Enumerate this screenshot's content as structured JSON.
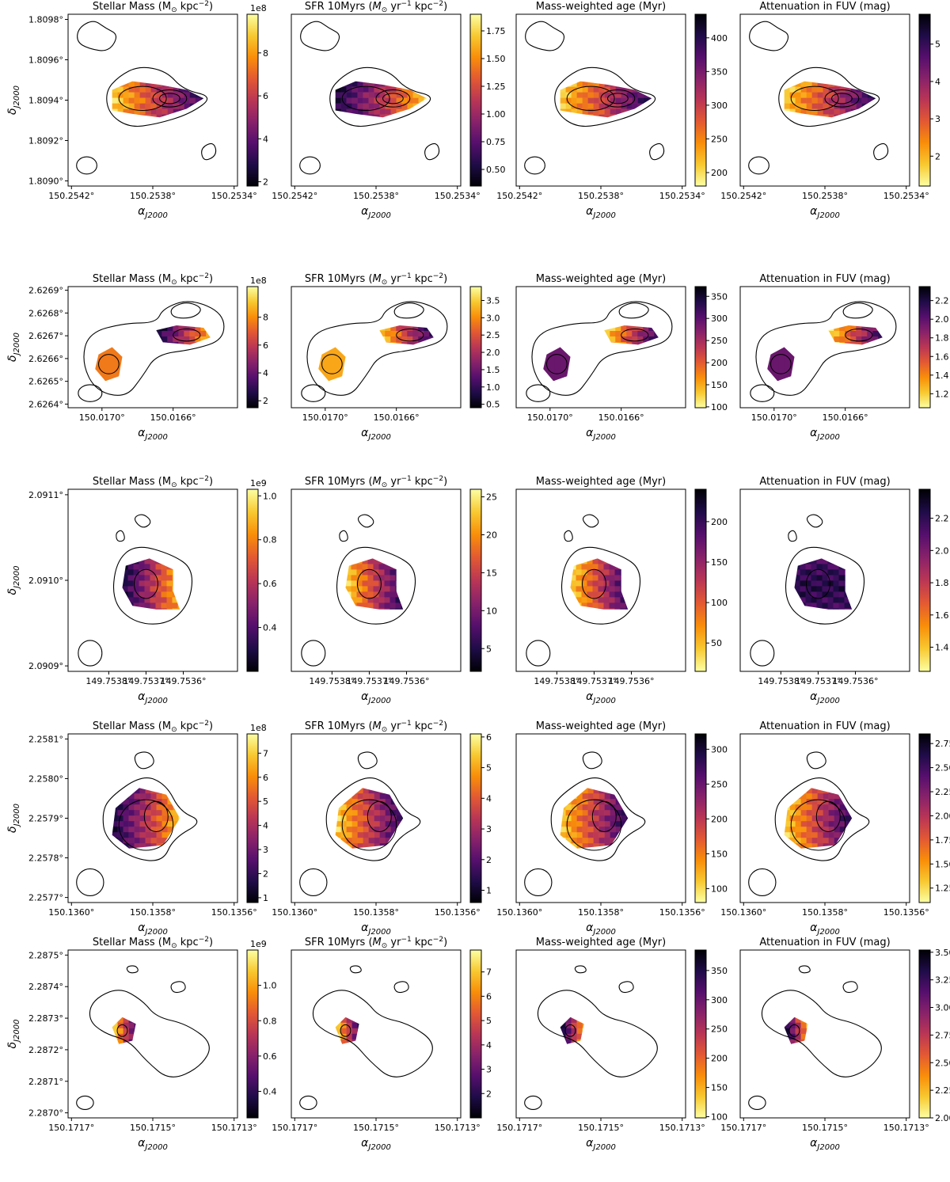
{
  "figure": {
    "axis_labels": {
      "ra": "α",
      "ra_sub": "J2000",
      "dec": "δ",
      "dec_sub": "J2000"
    },
    "panel_titles": [
      {
        "plain": "Stellar Mass (M",
        "sub": "⊙",
        "tail": " kpc",
        "sup": "−2",
        "end": ")"
      },
      {
        "plain": "SFR 10Myrs (",
        "m": "M",
        "sub": "⊙",
        "tail": " yr",
        "sup": "−1",
        "mid": " kpc",
        "sup2": "−2",
        "end": ")"
      },
      {
        "plain": "Mass-weighted age (Myr)"
      },
      {
        "plain": "Attenuation in FUV (mag)"
      }
    ],
    "colormaps": {
      "inferno": [
        "#000004",
        "#1f0c48",
        "#550f6d",
        "#88226a",
        "#ba3655",
        "#e35933",
        "#f98e09",
        "#f8c931",
        "#fcffa4"
      ],
      "inferno_r": [
        "#fcffa4",
        "#f8c931",
        "#f98e09",
        "#e35933",
        "#ba3655",
        "#88226a",
        "#550f6d",
        "#1f0c48",
        "#000004"
      ]
    }
  },
  "chart_data": [
    {
      "type": "heatmap",
      "galaxy": 1,
      "ra_ticks": [
        "150.2542°",
        "150.2538°",
        "150.2534°"
      ],
      "dec_ticks": [
        "1.8098°",
        "1.8096°",
        "1.8094°",
        "1.8092°",
        "1.8090°"
      ],
      "panels": [
        {
          "quantity": "Stellar Mass",
          "cmap": "inferno",
          "range": [
            1.8,
            9.8
          ],
          "ticks": [
            "2",
            "4",
            "6",
            "8"
          ],
          "exponent": "1e8",
          "hot": "left"
        },
        {
          "quantity": "SFR 10Myrs",
          "cmap": "inferno",
          "range": [
            0.35,
            1.9
          ],
          "ticks": [
            "0.50",
            "0.75",
            "1.00",
            "1.25",
            "1.50",
            "1.75"
          ],
          "hot": "right"
        },
        {
          "quantity": "Mass-weighted age",
          "cmap": "inferno_r",
          "range": [
            180,
            435
          ],
          "ticks": [
            "200",
            "250",
            "300",
            "350",
            "400"
          ],
          "hot": "right"
        },
        {
          "quantity": "Attenuation in FUV",
          "cmap": "inferno_r",
          "range": [
            1.2,
            5.8
          ],
          "ticks": [
            "2",
            "3",
            "4",
            "5"
          ],
          "hot": "right"
        }
      ]
    },
    {
      "type": "heatmap",
      "galaxy": 2,
      "ra_ticks": [
        "150.0170°",
        "150.0166°"
      ],
      "dec_ticks": [
        "2.6269°",
        "2.6268°",
        "2.6267°",
        "2.6266°",
        "2.6265°",
        "2.6264°"
      ],
      "panels": [
        {
          "quantity": "Stellar Mass",
          "cmap": "inferno",
          "range": [
            1.5,
            10.2
          ],
          "ticks": [
            "2",
            "4",
            "6",
            "8"
          ],
          "exponent": "1e8",
          "hot": "right"
        },
        {
          "quantity": "SFR 10Myrs",
          "cmap": "inferno",
          "range": [
            0.4,
            3.9
          ],
          "ticks": [
            "0.5",
            "1.0",
            "1.5",
            "2.0",
            "2.5",
            "3.0",
            "3.5"
          ],
          "hot": "left"
        },
        {
          "quantity": "Mass-weighted age",
          "cmap": "inferno_r",
          "range": [
            98,
            372
          ],
          "ticks": [
            "100",
            "150",
            "200",
            "250",
            "300",
            "350"
          ],
          "hot": "right"
        },
        {
          "quantity": "Attenuation in FUV",
          "cmap": "inferno_r",
          "range": [
            1.05,
            2.35
          ],
          "ticks": [
            "1.2",
            "1.4",
            "1.6",
            "1.8",
            "2.0",
            "2.2"
          ],
          "hot": "right"
        }
      ]
    },
    {
      "type": "heatmap",
      "galaxy": 3,
      "ra_ticks": [
        "149.7538°",
        "149.7537°",
        "149.7536°"
      ],
      "dec_ticks": [
        "2.0911°",
        "2.0910°",
        "2.0909°"
      ],
      "panels": [
        {
          "quantity": "Stellar Mass",
          "cmap": "inferno",
          "range": [
            0.2,
            1.03
          ],
          "ticks": [
            "0.4",
            "0.6",
            "0.8",
            "1.0"
          ],
          "exponent": "1e9",
          "hot": "right"
        },
        {
          "quantity": "SFR 10Myrs",
          "cmap": "inferno",
          "range": [
            2,
            26
          ],
          "ticks": [
            "5",
            "10",
            "15",
            "20",
            "25"
          ],
          "hot": "left"
        },
        {
          "quantity": "Mass-weighted age",
          "cmap": "inferno_r",
          "range": [
            15,
            240
          ],
          "ticks": [
            "50",
            "100",
            "150",
            "200"
          ],
          "hot": "right"
        },
        {
          "quantity": "Attenuation in FUV",
          "cmap": "inferno_r",
          "range": [
            1.25,
            2.38
          ],
          "ticks": [
            "1.4",
            "1.6",
            "1.8",
            "2.0",
            "2.2"
          ],
          "hot": "none"
        }
      ]
    },
    {
      "type": "heatmap",
      "galaxy": 4,
      "ra_ticks": [
        "150.1360°",
        "150.1358°",
        "150.1356°"
      ],
      "dec_ticks": [
        "2.2581°",
        "2.2580°",
        "2.2579°",
        "2.2578°",
        "2.2577°"
      ],
      "panels": [
        {
          "quantity": "Stellar Mass",
          "cmap": "inferno",
          "range": [
            0.8,
            7.8
          ],
          "ticks": [
            "1",
            "2",
            "3",
            "4",
            "5",
            "6",
            "7"
          ],
          "exponent": "1e8",
          "hot": "right"
        },
        {
          "quantity": "SFR 10Myrs",
          "cmap": "inferno",
          "range": [
            0.6,
            6.1
          ],
          "ticks": [
            "1",
            "2",
            "3",
            "4",
            "5",
            "6"
          ],
          "hot": "left"
        },
        {
          "quantity": "Mass-weighted age",
          "cmap": "inferno_r",
          "range": [
            80,
            322
          ],
          "ticks": [
            "100",
            "150",
            "200",
            "250",
            "300"
          ],
          "hot": "right"
        },
        {
          "quantity": "Attenuation in FUV",
          "cmap": "inferno_r",
          "range": [
            1.1,
            2.85
          ],
          "ticks": [
            "1.25",
            "1.50",
            "1.75",
            "2.00",
            "2.25",
            "2.50",
            "2.75"
          ],
          "hot": "right"
        }
      ]
    },
    {
      "type": "heatmap",
      "galaxy": 5,
      "ra_ticks": [
        "150.1717°",
        "150.1715°",
        "150.1713°"
      ],
      "dec_ticks": [
        "2.2875°",
        "2.2874°",
        "2.2873°",
        "2.2872°",
        "2.2871°",
        "2.2870°"
      ],
      "panels": [
        {
          "quantity": "Stellar Mass",
          "cmap": "inferno",
          "range": [
            0.25,
            1.2
          ],
          "ticks": [
            "0.4",
            "0.6",
            "0.8",
            "1.0"
          ],
          "exponent": "1e9",
          "hot": "left"
        },
        {
          "quantity": "SFR 10Myrs",
          "cmap": "inferno",
          "range": [
            1,
            7.9
          ],
          "ticks": [
            "2",
            "3",
            "4",
            "5",
            "6",
            "7"
          ],
          "hot": "left"
        },
        {
          "quantity": "Mass-weighted age",
          "cmap": "inferno_r",
          "range": [
            98,
            385
          ],
          "ticks": [
            "100",
            "150",
            "200",
            "250",
            "300",
            "350"
          ],
          "hot": "left"
        },
        {
          "quantity": "Attenuation in FUV",
          "cmap": "inferno_r",
          "range": [
            2.0,
            3.52
          ],
          "ticks": [
            "2.00",
            "2.25",
            "2.50",
            "2.75",
            "3.00",
            "3.25",
            "3.50"
          ],
          "hot": "left"
        }
      ]
    }
  ]
}
